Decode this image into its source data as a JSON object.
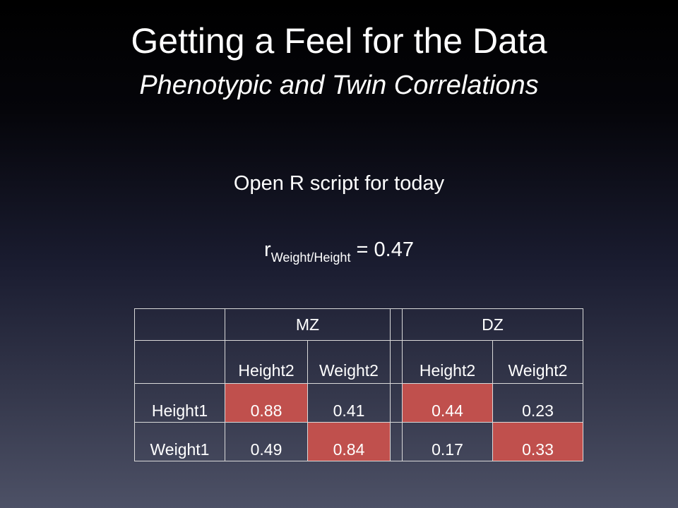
{
  "slide": {
    "title": "Getting a Feel for the Data",
    "subtitle": "Phenotypic and Twin Correlations",
    "instruction": "Open R script for today",
    "formula": {
      "r": "r",
      "subscript": "Weight/Height",
      "rest": " = 0.47"
    }
  },
  "table": {
    "groups": [
      "MZ",
      "DZ"
    ],
    "col_headers": [
      "Height2",
      "Weight2",
      "Height2",
      "Weight2"
    ],
    "rows": [
      {
        "label": "Height1",
        "mz": [
          "0.88",
          "0.41"
        ],
        "dz": [
          "0.44",
          "0.23"
        ]
      },
      {
        "label": "Weight1",
        "mz": [
          "0.49",
          "0.84"
        ],
        "dz": [
          "0.17",
          "0.33"
        ]
      }
    ],
    "highlight_color": "#c0504d"
  }
}
